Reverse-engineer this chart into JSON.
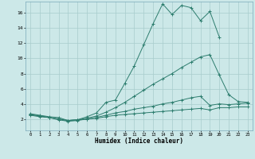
{
  "xlabel": "Humidex (Indice chaleur)",
  "bg_color": "#cce8e8",
  "line_color": "#2d7d6e",
  "grid_color": "#a8cccc",
  "xlim": [
    -0.5,
    23.5
  ],
  "ylim": [
    0.5,
    17.5
  ],
  "yticks": [
    2,
    4,
    6,
    8,
    10,
    12,
    14,
    16
  ],
  "xticks": [
    0,
    1,
    2,
    3,
    4,
    5,
    6,
    7,
    8,
    9,
    10,
    11,
    12,
    13,
    14,
    15,
    16,
    17,
    18,
    19,
    20,
    21,
    22,
    23
  ],
  "series": [
    {
      "x": [
        0,
        1,
        2,
        3,
        4,
        5,
        6,
        7,
        8,
        9,
        10,
        11,
        12,
        13,
        14,
        15,
        16,
        17,
        18,
        19,
        20
      ],
      "y": [
        2.7,
        2.5,
        2.3,
        2.2,
        1.8,
        1.9,
        2.3,
        2.8,
        4.2,
        4.5,
        6.7,
        9.0,
        11.8,
        14.6,
        17.2,
        15.8,
        17.0,
        16.7,
        15.0,
        16.2,
        12.8
      ]
    },
    {
      "x": [
        0,
        1,
        2,
        3,
        4,
        5,
        6,
        7,
        8,
        9,
        10,
        11,
        12,
        13,
        14,
        15,
        16,
        17,
        18,
        19,
        20,
        21,
        22,
        23
      ],
      "y": [
        2.6,
        2.4,
        2.2,
        2.0,
        1.8,
        1.9,
        2.1,
        2.4,
        2.9,
        3.5,
        4.2,
        5.0,
        5.8,
        6.6,
        7.3,
        8.0,
        8.8,
        9.5,
        10.2,
        10.5,
        7.8,
        5.2,
        4.3,
        4.2
      ]
    },
    {
      "x": [
        0,
        1,
        2,
        3,
        4,
        5,
        6,
        7,
        8,
        9,
        10,
        11,
        12,
        13,
        14,
        15,
        16,
        17,
        18,
        19,
        20,
        21,
        22,
        23
      ],
      "y": [
        2.6,
        2.4,
        2.2,
        2.0,
        1.8,
        1.9,
        2.0,
        2.2,
        2.5,
        2.8,
        3.0,
        3.3,
        3.5,
        3.7,
        4.0,
        4.2,
        4.5,
        4.8,
        5.0,
        3.8,
        4.0,
        3.9,
        4.0,
        4.1
      ]
    },
    {
      "x": [
        0,
        1,
        2,
        3,
        4,
        5,
        6,
        7,
        8,
        9,
        10,
        11,
        12,
        13,
        14,
        15,
        16,
        17,
        18,
        19,
        20,
        21,
        22,
        23
      ],
      "y": [
        2.5,
        2.3,
        2.2,
        1.9,
        1.7,
        1.8,
        2.0,
        2.1,
        2.3,
        2.5,
        2.6,
        2.7,
        2.8,
        2.9,
        3.0,
        3.1,
        3.2,
        3.3,
        3.4,
        3.2,
        3.5,
        3.5,
        3.6,
        3.6
      ]
    }
  ]
}
